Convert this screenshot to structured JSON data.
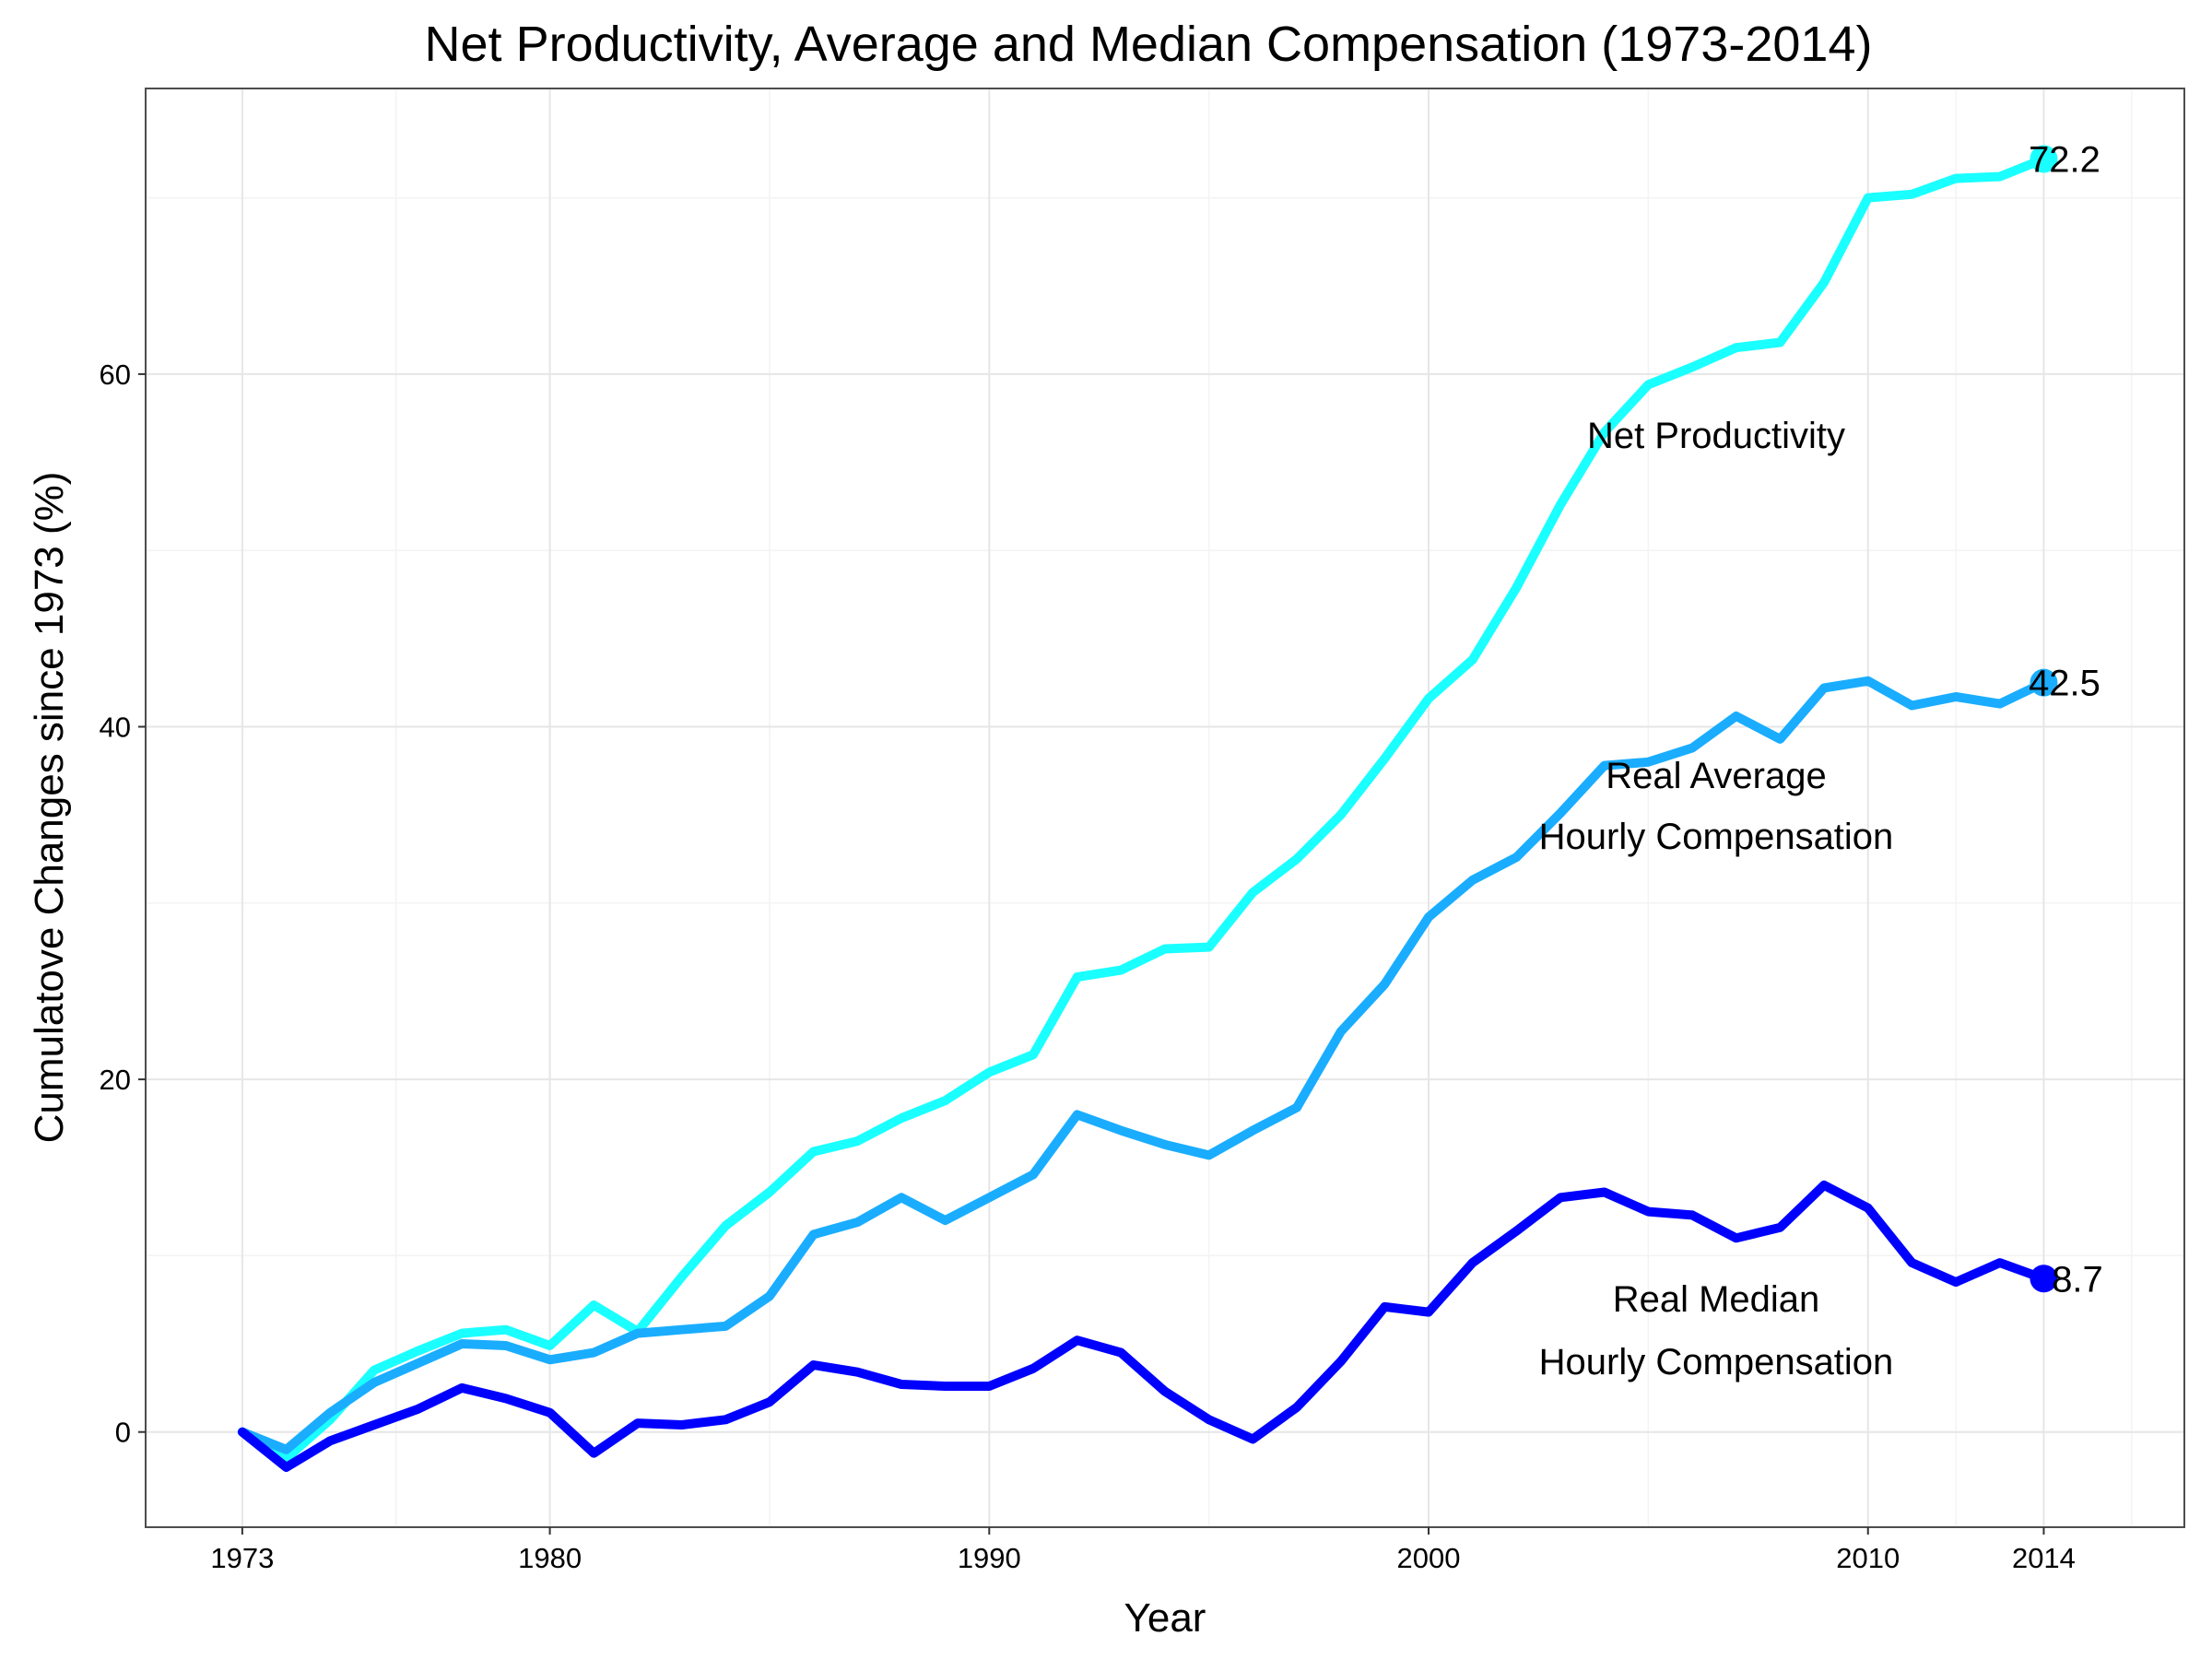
{
  "chart_data": {
    "type": "line",
    "title": "Net Productivity, Average and Median Compensation (1973-2014)",
    "xlabel": "Year",
    "ylabel": "Cumulatove Changes since 1973 (%)",
    "xlim": [
      1970.8,
      2017.2
    ],
    "ylim": [
      -5.4,
      76.2
    ],
    "x_ticks": [
      1973,
      1980,
      1990,
      2000,
      2010,
      2014
    ],
    "y_ticks": [
      0,
      20,
      40,
      60
    ],
    "grid": true,
    "x": [
      1973,
      1974,
      1975,
      1976,
      1977,
      1978,
      1979,
      1980,
      1981,
      1982,
      1983,
      1984,
      1985,
      1986,
      1987,
      1988,
      1989,
      1990,
      1991,
      1992,
      1993,
      1994,
      1995,
      1996,
      1997,
      1998,
      1999,
      2000,
      2001,
      2002,
      2003,
      2004,
      2005,
      2006,
      2007,
      2008,
      2009,
      2010,
      2011,
      2012,
      2013,
      2014
    ],
    "series": [
      {
        "name": "Net Productivity",
        "color": "#1affff",
        "values": [
          0,
          -1.5,
          0.7,
          3.5,
          4.6,
          5.6,
          5.8,
          4.9,
          7.2,
          5.7,
          8.8,
          11.7,
          13.6,
          15.9,
          16.5,
          17.8,
          18.8,
          20.4,
          21.4,
          25.8,
          26.2,
          27.4,
          27.5,
          30.6,
          32.5,
          35.0,
          38.2,
          41.6,
          43.8,
          47.9,
          52.6,
          56.7,
          59.4,
          60.4,
          61.5,
          61.8,
          65.2,
          70.0,
          70.2,
          71.1,
          71.2,
          72.2
        ],
        "label_lines": [
          "Net Productivity"
        ],
        "end_label": "72.2"
      },
      {
        "name": "Real Average Hourly Compensation",
        "color": "#1aadff",
        "values": [
          0,
          -1.0,
          1.1,
          2.8,
          3.9,
          5.0,
          4.9,
          4.1,
          4.5,
          5.6,
          5.8,
          6.0,
          7.7,
          11.2,
          11.9,
          13.3,
          12.0,
          13.3,
          14.6,
          18.0,
          17.1,
          16.3,
          15.7,
          17.1,
          18.4,
          22.7,
          25.4,
          29.2,
          31.3,
          32.6,
          35.1,
          37.8,
          38.0,
          38.8,
          40.6,
          39.3,
          42.2,
          42.6,
          41.2,
          41.7,
          41.3,
          42.5
        ],
        "label_lines": [
          "Real Average",
          "Hourly Compensation"
        ],
        "end_label": "42.5"
      },
      {
        "name": "Real Median Hourly Compensation",
        "color": "#0000ff",
        "values": [
          0,
          -2.0,
          -0.5,
          0.4,
          1.3,
          2.5,
          1.9,
          1.1,
          -1.2,
          0.5,
          0.4,
          0.7,
          1.7,
          3.8,
          3.4,
          2.7,
          2.6,
          2.6,
          3.6,
          5.2,
          4.5,
          2.3,
          0.7,
          -0.4,
          1.4,
          4.0,
          7.1,
          6.8,
          9.6,
          11.4,
          13.3,
          13.6,
          12.5,
          12.3,
          11.0,
          11.6,
          14.0,
          12.7,
          9.6,
          8.5,
          9.6,
          8.7
        ],
        "label_lines": [
          "Real Median",
          "Hourly Compensation"
        ],
        "end_label": "8.7"
      }
    ]
  }
}
